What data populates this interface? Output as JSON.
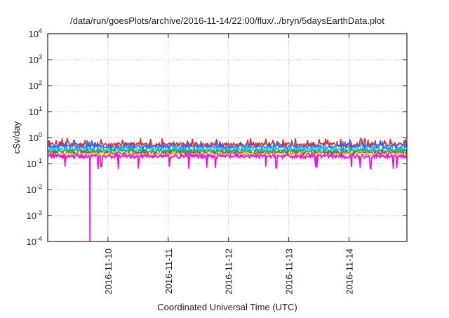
{
  "chart_data": {
    "type": "line",
    "title": "/data/run/goesPlots/archive/2016-11-14/22:00/flux/../bryn/5daysEarthData.plot",
    "xlabel": "Coordinated Universal Time (UTC)",
    "ylabel": "cSv/day",
    "yscale": "log",
    "ylim": [
      0.0001,
      10000
    ],
    "y_ticks": [
      {
        "base": "10",
        "exp": "4"
      },
      {
        "base": "10",
        "exp": "3"
      },
      {
        "base": "10",
        "exp": "2"
      },
      {
        "base": "10",
        "exp": "1"
      },
      {
        "base": "10",
        "exp": "0"
      },
      {
        "base": "10",
        "exp": "-1"
      },
      {
        "base": "10",
        "exp": "-2"
      },
      {
        "base": "10",
        "exp": "-3"
      },
      {
        "base": "10",
        "exp": "-4"
      }
    ],
    "x_unit": "days since 2016-11-10 00:00 UTC",
    "xlim": [
      -1.0,
      4.96
    ],
    "x_ticks": [
      {
        "value": 0,
        "label": "2016-11-10"
      },
      {
        "value": 1,
        "label": "2016-11-11"
      },
      {
        "value": 2,
        "label": "2016-11-12"
      },
      {
        "value": 3,
        "label": "2016-11-13"
      },
      {
        "value": 4,
        "label": "2016-11-14"
      }
    ],
    "grid": true,
    "series": [
      {
        "name": "red",
        "color": "#ff2020",
        "typical": 0.55,
        "min": 0.42,
        "max": 0.95
      },
      {
        "name": "blue",
        "color": "#1e6fff",
        "typical": 0.45,
        "min": 0.33,
        "max": 0.8
      },
      {
        "name": "cyan",
        "color": "#20c8d8",
        "typical": 0.35,
        "min": 0.27,
        "max": 0.5
      },
      {
        "name": "teal",
        "color": "#20a880",
        "typical": 0.3,
        "min": 0.24,
        "max": 0.42
      },
      {
        "name": "brown",
        "color": "#a05050",
        "typical": 0.25,
        "min": 0.2,
        "max": 0.33
      },
      {
        "name": "yellow",
        "color": "#e8e020",
        "typical": 0.22,
        "min": 0.19,
        "max": 0.27
      },
      {
        "name": "magenta",
        "color": "#ff00ff",
        "typical": 0.19,
        "min": 0.06,
        "max": 0.25,
        "spike": {
          "x": -0.3,
          "y": 0.0001
        }
      }
    ]
  }
}
